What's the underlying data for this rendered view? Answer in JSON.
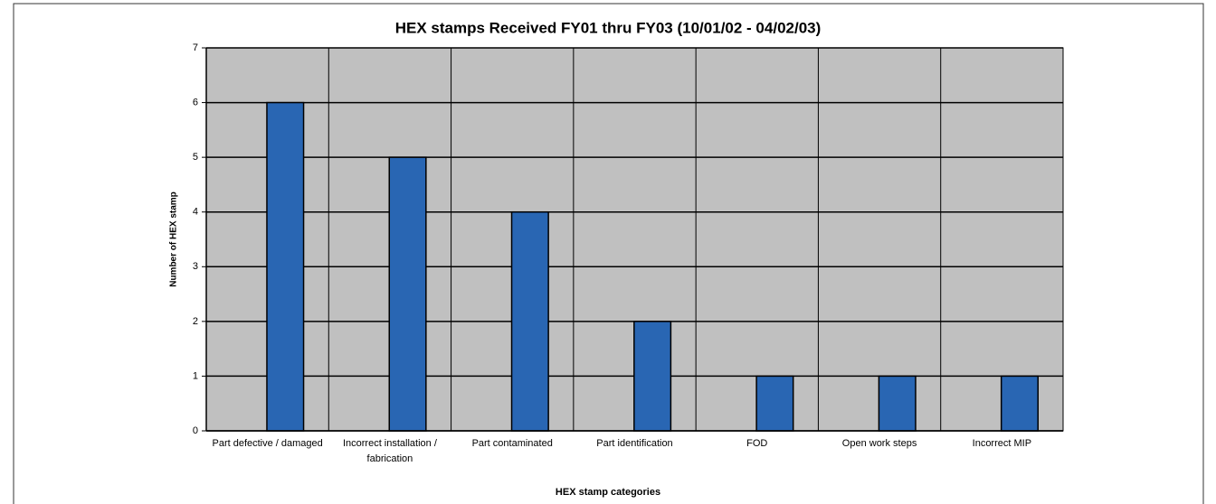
{
  "chart_data": {
    "type": "bar",
    "title": "HEX stamps Received FY01 thru FY03 (10/01/02 - 04/02/03)",
    "x_label": "HEX stamp categories",
    "y_label": "Number of HEX stamp",
    "categories": [
      "Part defective / damaged",
      "Incorrect installation / fabrication",
      "Part contaminated",
      "Part identification",
      "FOD",
      "Open work steps",
      "Incorrect MIP"
    ],
    "values": [
      6,
      5,
      4,
      2,
      1,
      1,
      1
    ],
    "color": "#2966b3",
    "ylim": [
      0,
      7
    ],
    "yticks": [
      0,
      1,
      2,
      3,
      4,
      5,
      6,
      7
    ],
    "grid": true
  }
}
